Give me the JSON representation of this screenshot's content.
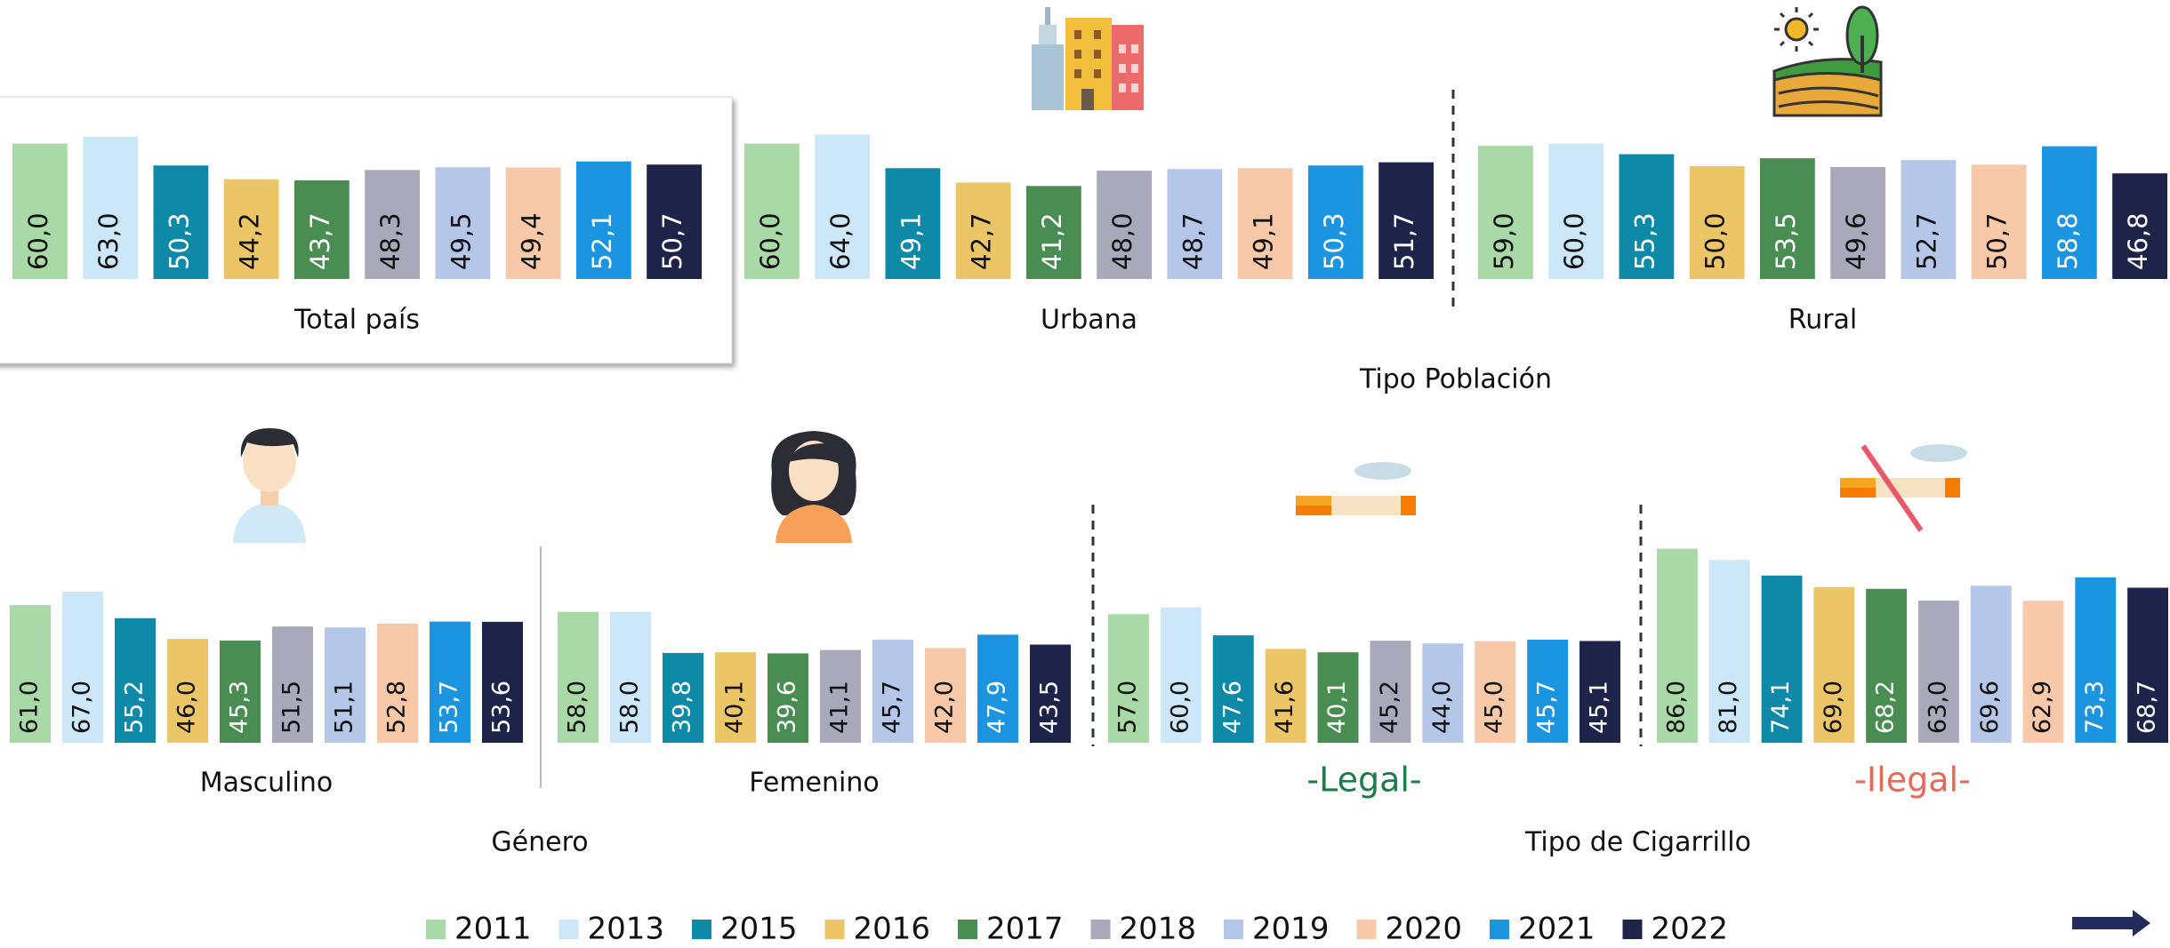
{
  "chart_data": [
    {
      "type": "bar",
      "title": "Total país",
      "values": [
        60.0,
        63.0,
        50.3,
        44.2,
        43.7,
        48.3,
        49.5,
        49.4,
        52.1,
        50.7
      ],
      "value_labels": [
        "60,0",
        "63,0",
        "50,3",
        "44,2",
        "43,7",
        "48,3",
        "49,5",
        "49,4",
        "52,1",
        "50,7"
      ]
    },
    {
      "type": "bar",
      "title": "Urbana",
      "values": [
        60.0,
        64.0,
        49.1,
        42.7,
        41.2,
        48.0,
        48.7,
        49.1,
        50.3,
        51.7
      ],
      "value_labels": [
        "60,0",
        "64,0",
        "49,1",
        "42,7",
        "41,2",
        "48,0",
        "48,7",
        "49,1",
        "50,3",
        "51,7"
      ]
    },
    {
      "type": "bar",
      "title": "Rural",
      "values": [
        59.0,
        60.0,
        55.3,
        50.0,
        53.5,
        49.6,
        52.7,
        50.7,
        58.8,
        46.8
      ],
      "value_labels": [
        "59,0",
        "60,0",
        "55,3",
        "50,0",
        "53,5",
        "49,6",
        "52,7",
        "50,7",
        "58,8",
        "46,8"
      ]
    },
    {
      "type": "bar",
      "title": "Masculino",
      "values": [
        61.0,
        67.0,
        55.2,
        46.0,
        45.3,
        51.5,
        51.1,
        52.8,
        53.7,
        53.6
      ],
      "value_labels": [
        "61,0",
        "67,0",
        "55,2",
        "46,0",
        "45,3",
        "51,5",
        "51,1",
        "52,8",
        "53,7",
        "53,6"
      ]
    },
    {
      "type": "bar",
      "title": "Femenino",
      "values": [
        58.0,
        58.0,
        39.8,
        40.1,
        39.6,
        41.1,
        45.7,
        42.0,
        47.9,
        43.5
      ],
      "value_labels": [
        "58,0",
        "58,0",
        "39,8",
        "40,1",
        "39,6",
        "41,1",
        "45,7",
        "42,0",
        "47,9",
        "43,5"
      ]
    },
    {
      "type": "bar",
      "title": "-Legal-",
      "title_color": "#1f7a4c",
      "values": [
        57.0,
        60.0,
        47.6,
        41.6,
        40.1,
        45.2,
        44.0,
        45.0,
        45.7,
        45.1
      ],
      "value_labels": [
        "57,0",
        "60,0",
        "47,6",
        "41,6",
        "40,1",
        "45,2",
        "44,0",
        "45,0",
        "45,7",
        "45,1"
      ]
    },
    {
      "type": "bar",
      "title": "-Ilegal-",
      "title_color": "#e8685a",
      "values": [
        86.0,
        81.0,
        74.1,
        69.0,
        68.2,
        63.0,
        69.6,
        62.9,
        73.3,
        68.7
      ],
      "value_labels": [
        "86,0",
        "81,0",
        "74,1",
        "69,0",
        "68,2",
        "63,0",
        "69,6",
        "62,9",
        "73,3",
        "68,7"
      ]
    }
  ],
  "groups": [
    {
      "label": "Tipo Población"
    },
    {
      "label": "Género"
    },
    {
      "label": "Tipo de Cigarrillo"
    }
  ],
  "legend": {
    "names": [
      "2011",
      "2013",
      "2015",
      "2016",
      "2017",
      "2018",
      "2019",
      "2020",
      "2021",
      "2022"
    ],
    "colors": [
      "#a9d9a6",
      "#cce8f8",
      "#0e8aa8",
      "#ecc566",
      "#4a8d52",
      "#a9a9bb",
      "#b5c7e9",
      "#f8c9a9",
      "#1b95e0",
      "#1e2449"
    ],
    "text_colors": [
      "#111111",
      "#111111",
      "#ffffff",
      "#111111",
      "#ffffff",
      "#111111",
      "#111111",
      "#111111",
      "#ffffff",
      "#ffffff"
    ]
  }
}
